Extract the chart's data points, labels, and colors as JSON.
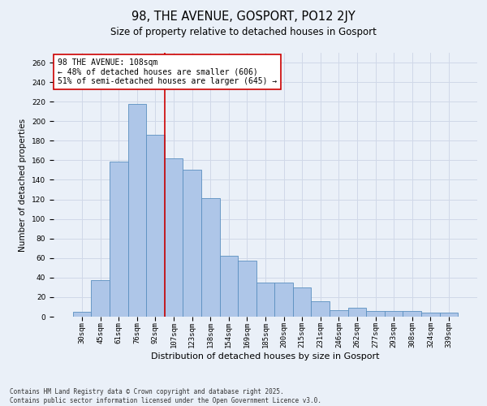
{
  "title": "98, THE AVENUE, GOSPORT, PO12 2JY",
  "subtitle": "Size of property relative to detached houses in Gosport",
  "xlabel": "Distribution of detached houses by size in Gosport",
  "ylabel": "Number of detached properties",
  "bar_labels": [
    "30sqm",
    "45sqm",
    "61sqm",
    "76sqm",
    "92sqm",
    "107sqm",
    "123sqm",
    "138sqm",
    "154sqm",
    "169sqm",
    "185sqm",
    "200sqm",
    "215sqm",
    "231sqm",
    "246sqm",
    "262sqm",
    "277sqm",
    "293sqm",
    "308sqm",
    "324sqm",
    "339sqm"
  ],
  "bar_values": [
    5,
    37,
    159,
    218,
    186,
    162,
    150,
    121,
    62,
    57,
    35,
    35,
    30,
    16,
    7,
    9,
    6,
    6,
    6,
    4,
    4
  ],
  "bar_color": "#aec6e8",
  "bar_edge_color": "#5a8fc0",
  "vline_x": 4.5,
  "vline_color": "#cc0000",
  "annotation_text": "98 THE AVENUE: 108sqm\n← 48% of detached houses are smaller (606)\n51% of semi-detached houses are larger (645) →",
  "annotation_box_color": "#ffffff",
  "annotation_box_edge_color": "#cc0000",
  "annotation_fontsize": 7,
  "ylim": [
    0,
    270
  ],
  "yticks": [
    0,
    20,
    40,
    60,
    80,
    100,
    120,
    140,
    160,
    180,
    200,
    220,
    240,
    260
  ],
  "grid_color": "#d0d8e8",
  "background_color": "#eaf0f8",
  "footer_text": "Contains HM Land Registry data © Crown copyright and database right 2025.\nContains public sector information licensed under the Open Government Licence v3.0.",
  "title_fontsize": 10.5,
  "subtitle_fontsize": 8.5,
  "xlabel_fontsize": 8,
  "ylabel_fontsize": 7.5,
  "tick_fontsize": 6.5,
  "footer_fontsize": 5.5
}
